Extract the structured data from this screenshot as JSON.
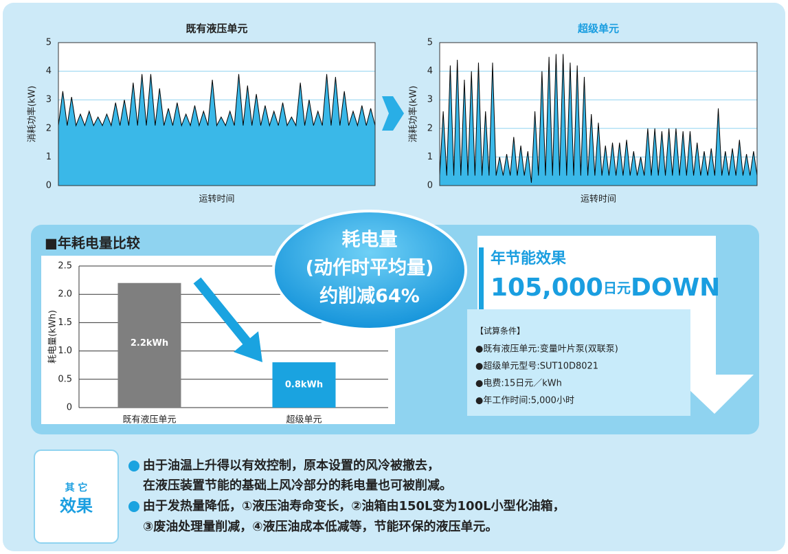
{
  "chart_data": [
    {
      "type": "line",
      "title": "既有液压单元",
      "ylabel": "消耗功率(kW)",
      "xlabel": "运转时间",
      "color": "#000000",
      "fill": "#3ab8e8",
      "title_color": "#222222",
      "values": [
        2.1,
        3.3,
        2.1,
        3.1,
        2.1,
        2.5,
        2.1,
        2.6,
        2.1,
        2.4,
        2.1,
        2.5,
        2.1,
        2.9,
        2.1,
        3.0,
        2.1,
        3.6,
        2.1,
        3.9,
        2.1,
        3.9,
        2.1,
        3.4,
        2.1,
        2.7,
        2.1,
        2.9,
        2.1,
        2.5,
        2.1,
        2.8,
        2.1,
        2.6,
        2.1,
        3.7,
        2.1,
        2.4,
        2.1,
        2.6,
        2.1,
        3.9,
        2.1,
        3.5,
        2.1,
        3.2,
        2.1,
        2.8,
        2.1,
        2.6,
        2.1,
        2.9,
        2.1,
        2.4,
        2.1,
        3.6,
        2.1,
        3.0,
        2.1,
        2.6,
        2.1,
        3.9,
        2.1,
        3.8,
        2.1,
        3.3,
        2.1,
        2.6,
        2.1,
        2.8,
        2.1,
        2.7,
        2.1
      ],
      "ylim": [
        0,
        5
      ],
      "yticks": [
        0,
        1,
        2,
        3,
        4,
        5
      ],
      "grid": true
    },
    {
      "type": "line",
      "title": "超级单元",
      "ylabel": "消耗功率(kW)",
      "xlabel": "运转时间",
      "color": "#000000",
      "fill": "#3ab8e8",
      "title_color": "#1a9ee0",
      "values": [
        0.35,
        2.6,
        0.35,
        4.2,
        0.35,
        4.4,
        0.35,
        3.7,
        0.35,
        4.0,
        0.35,
        4.3,
        0.35,
        2.6,
        0.35,
        4.3,
        0.35,
        1.0,
        0.35,
        1.1,
        0.35,
        1.7,
        0.35,
        1.4,
        0.35,
        1.2,
        0.1,
        2.6,
        0.35,
        4.0,
        0.35,
        4.5,
        0.35,
        4.6,
        0.35,
        4.6,
        0.35,
        4.3,
        0.35,
        4.2,
        0.35,
        3.8,
        0.35,
        2.5,
        0.35,
        2.2,
        0.35,
        1.4,
        0.35,
        1.5,
        0.35,
        1.5,
        0.35,
        1.6,
        0.35,
        1.2,
        0.35,
        1.0,
        0.35,
        2.0,
        0.35,
        2.0,
        0.35,
        1.9,
        0.35,
        2.0,
        0.35,
        2.0,
        0.35,
        1.9,
        0.35,
        1.9,
        0.35,
        1.5,
        0.35,
        1.2,
        0.35,
        1.3,
        0.35,
        2.7,
        0.35,
        1.2,
        0.35,
        1.3,
        0.35,
        1.6,
        0.35,
        1.1,
        0.35,
        1.2,
        0.35
      ],
      "ylim": [
        0,
        5
      ],
      "yticks": [
        0,
        1,
        2,
        3,
        4,
        5
      ],
      "grid": true
    },
    {
      "type": "bar",
      "title": "■年耗电量比较",
      "ylabel": "耗电量(kWh)",
      "categories": [
        "既有液压单元",
        "超级单元"
      ],
      "values": [
        2.2,
        0.8
      ],
      "value_labels": [
        "2.2kWh",
        "0.8kWh"
      ],
      "colors": [
        "#7f7f7f",
        "#1aa3e0"
      ],
      "ylim": [
        0,
        2.5
      ],
      "yticks": [
        0,
        0.5,
        {
          "value": 1.0,
          "label": "1.0"
        },
        1.5,
        {
          "value": 2.0,
          "label": "2.0"
        },
        2.5
      ],
      "grid": true
    }
  ],
  "bubble": [
    "耗电量",
    "(动作时平均量)",
    "约削减64%"
  ],
  "savings": {
    "title": "年节能效果",
    "amount": "105,000",
    "unit": "日元",
    "suffix": "DOWN"
  },
  "conditions": {
    "heading": "【试算条件】",
    "items": [
      "●既有液压单元:变量叶片泵(双联泵)",
      "●超级单元型号:SUT10D8021",
      "●电费:15日元／kWh",
      "●年工作时间:5,000小时"
    ]
  },
  "other": {
    "label_top": "其 它",
    "label_bottom": "效果",
    "lines": [
      "由于油温上升得以有效控制，原本设置的风冷被撤去，",
      "在液压装置节能的基础上风冷部分的耗电量也可被削减。",
      "由于发热量降低，①液压油寿命变长，②油箱由150L变为100L小型化油箱，",
      "③废油处理量削减，④液压油成本低减等，节能环保的液压单元。"
    ]
  }
}
